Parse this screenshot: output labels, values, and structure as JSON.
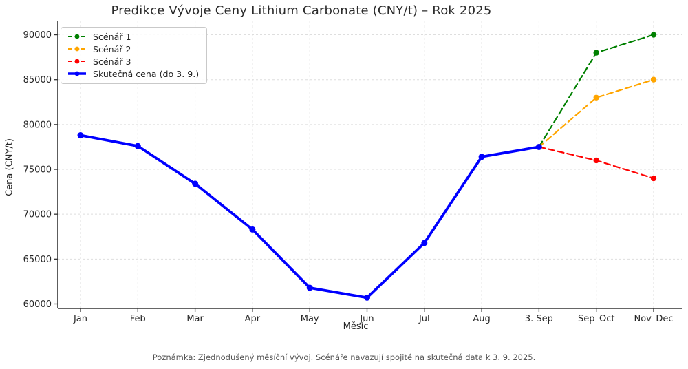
{
  "chart_data": {
    "type": "line",
    "title": "Predikce Vývoje Ceny Lithium Carbonate (CNY/t) – Rok 2025",
    "xlabel": "Měsíc",
    "ylabel": "Cena (CNY/t)",
    "note": "Poznámka: Zjednodušený měsíční vývoj. Scénáře navazují spojitě na skutečná data k 3. 9. 2025.",
    "categories": [
      "Jan",
      "Feb",
      "Mar",
      "Apr",
      "May",
      "Jun",
      "Jul",
      "Aug",
      "3. Sep",
      "Sep–Oct",
      "Nov–Dec"
    ],
    "yticks": [
      60000,
      65000,
      70000,
      75000,
      80000,
      85000,
      90000
    ],
    "ylim": [
      59500,
      91500
    ],
    "grid": true,
    "legend_position": "upper left",
    "series": [
      {
        "name": "Scénář 1",
        "color": "#008000",
        "style": "dashed",
        "x": [
          "3. Sep",
          "Sep–Oct",
          "Nov–Dec"
        ],
        "values": [
          77500,
          88000,
          90000
        ]
      },
      {
        "name": "Scénář 2",
        "color": "#FFA500",
        "style": "dashed",
        "x": [
          "3. Sep",
          "Sep–Oct",
          "Nov–Dec"
        ],
        "values": [
          77500,
          83000,
          85000
        ]
      },
      {
        "name": "Scénář 3",
        "color": "#FF0000",
        "style": "dashed",
        "x": [
          "3. Sep",
          "Sep–Oct",
          "Nov–Dec"
        ],
        "values": [
          77500,
          76000,
          74000
        ]
      },
      {
        "name": "Skutečná cena (do 3. 9.)",
        "color": "#0000FF",
        "style": "solid",
        "x": [
          "Jan",
          "Feb",
          "Mar",
          "Apr",
          "May",
          "Jun",
          "Jul",
          "Aug",
          "3. Sep"
        ],
        "values": [
          78800,
          77600,
          73400,
          68300,
          61800,
          60700,
          66800,
          76400,
          77500
        ]
      }
    ]
  }
}
